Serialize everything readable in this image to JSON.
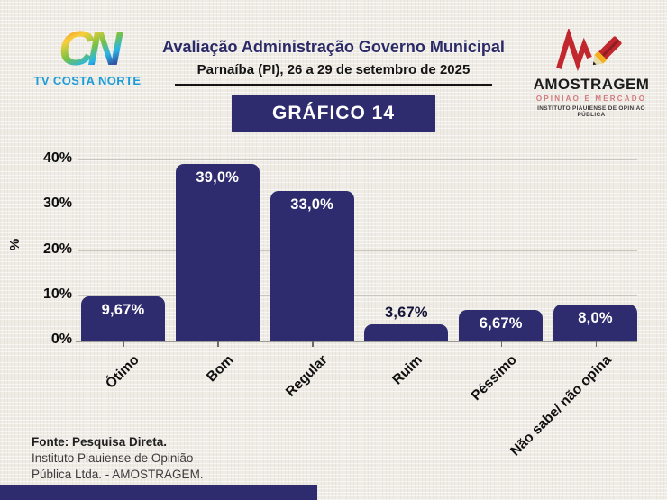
{
  "header": {
    "title": "Avaliação Administração Governo Municipal",
    "subtitle": "Parnaíba (PI), 26 a 29 de setembro de 2025",
    "chart_badge": "GRÁFICO 14",
    "left_logo": {
      "monogram": "CN",
      "name": "TV COSTA NORTE"
    },
    "right_logo": {
      "name": "AMOSTRAGEM",
      "tagline": "OPINIÃO E MERCADO",
      "subtitle": "INSTITUTO PIAUIENSE DE OPINIÃO PÚBLICA"
    }
  },
  "chart_data": {
    "type": "bar",
    "title": "Avaliação Administração Governo Municipal",
    "categories": [
      "Ótimo",
      "Bom",
      "Regular",
      "Ruim",
      "Péssimo",
      "Não sabe/ não opina"
    ],
    "values": [
      9.67,
      39.0,
      33.0,
      3.67,
      6.67,
      8.0
    ],
    "value_labels": [
      "9,67%",
      "39,0%",
      "33,0%",
      "3,67%",
      "6,67%",
      "8,0%"
    ],
    "xlabel": "",
    "ylabel": "%",
    "ylim": [
      0,
      40
    ],
    "ytick_values": [
      0,
      10,
      20,
      30,
      40
    ],
    "ytick_labels": [
      "0%",
      "10%",
      "20%",
      "30%",
      "40%"
    ],
    "grid": "horizontal",
    "legend": "none",
    "bar_color": "#2e2c6e"
  },
  "footer": {
    "line1": "Fonte: Pesquisa Direta.",
    "line2": "Instituto Piauiense de Opinião",
    "line3": "Pública Ltda. - AMOSTRAGEM."
  },
  "colors": {
    "navy": "#2e2c6e",
    "background": "#efece6",
    "tv_costa_norte_blue": "#1a9cd8",
    "amostragem_red": "#c1272d",
    "gridline": "#c9c6c0"
  }
}
